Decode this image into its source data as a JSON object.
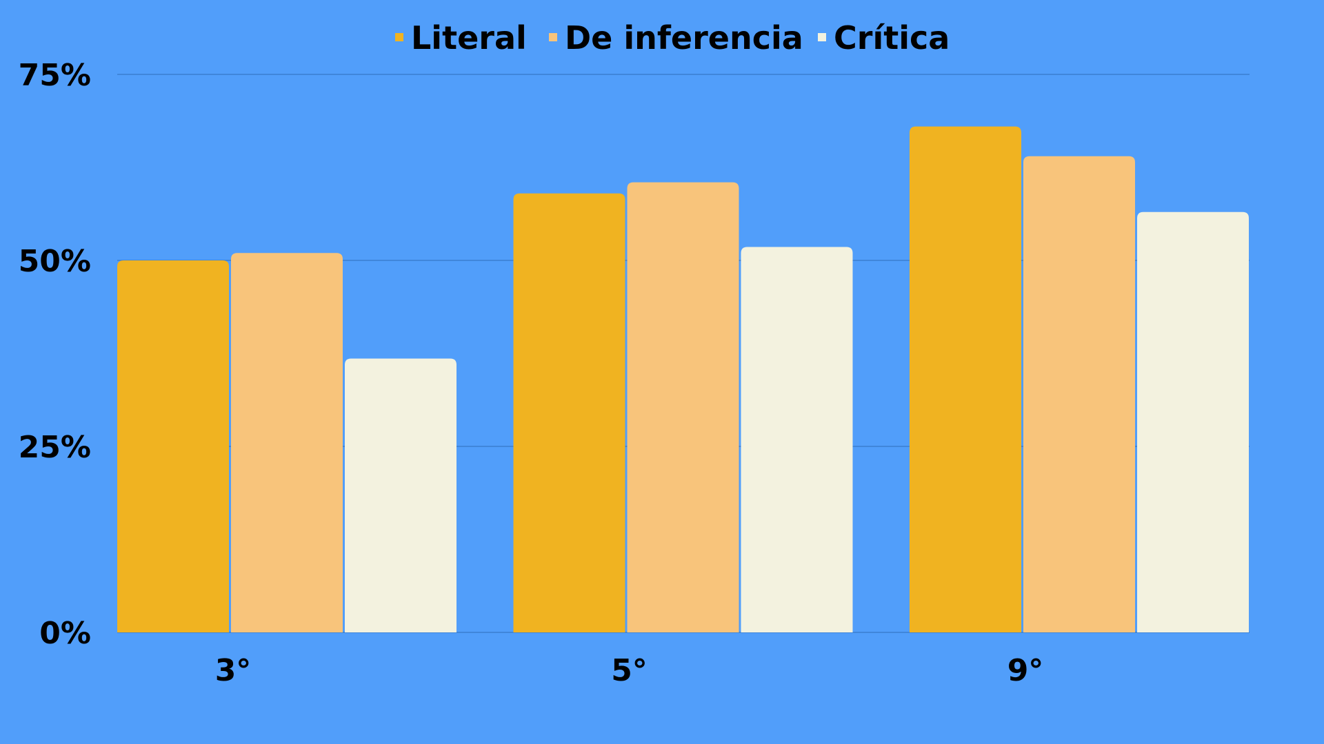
{
  "chart_data": {
    "type": "bar",
    "categories": [
      "3°",
      "5°",
      "9°"
    ],
    "series": [
      {
        "name": "Literal",
        "values": [
          50,
          59,
          68
        ],
        "color": "#f0b321"
      },
      {
        "name": "De inferencia",
        "values": [
          51,
          60.5,
          64
        ],
        "color": "#f8c47b"
      },
      {
        "name": "Crítica",
        "values": [
          36.8,
          51.8,
          56.5
        ],
        "color": "#f3f2df"
      }
    ],
    "yticks": [
      "0%",
      "25%",
      "50%",
      "75%"
    ],
    "ytick_values": [
      0,
      25,
      50,
      75
    ],
    "ylim": [
      0,
      75
    ],
    "grid": true,
    "legend_position": "top-center",
    "background_color": "#519efa",
    "grid_color": "#3b7fd0"
  }
}
